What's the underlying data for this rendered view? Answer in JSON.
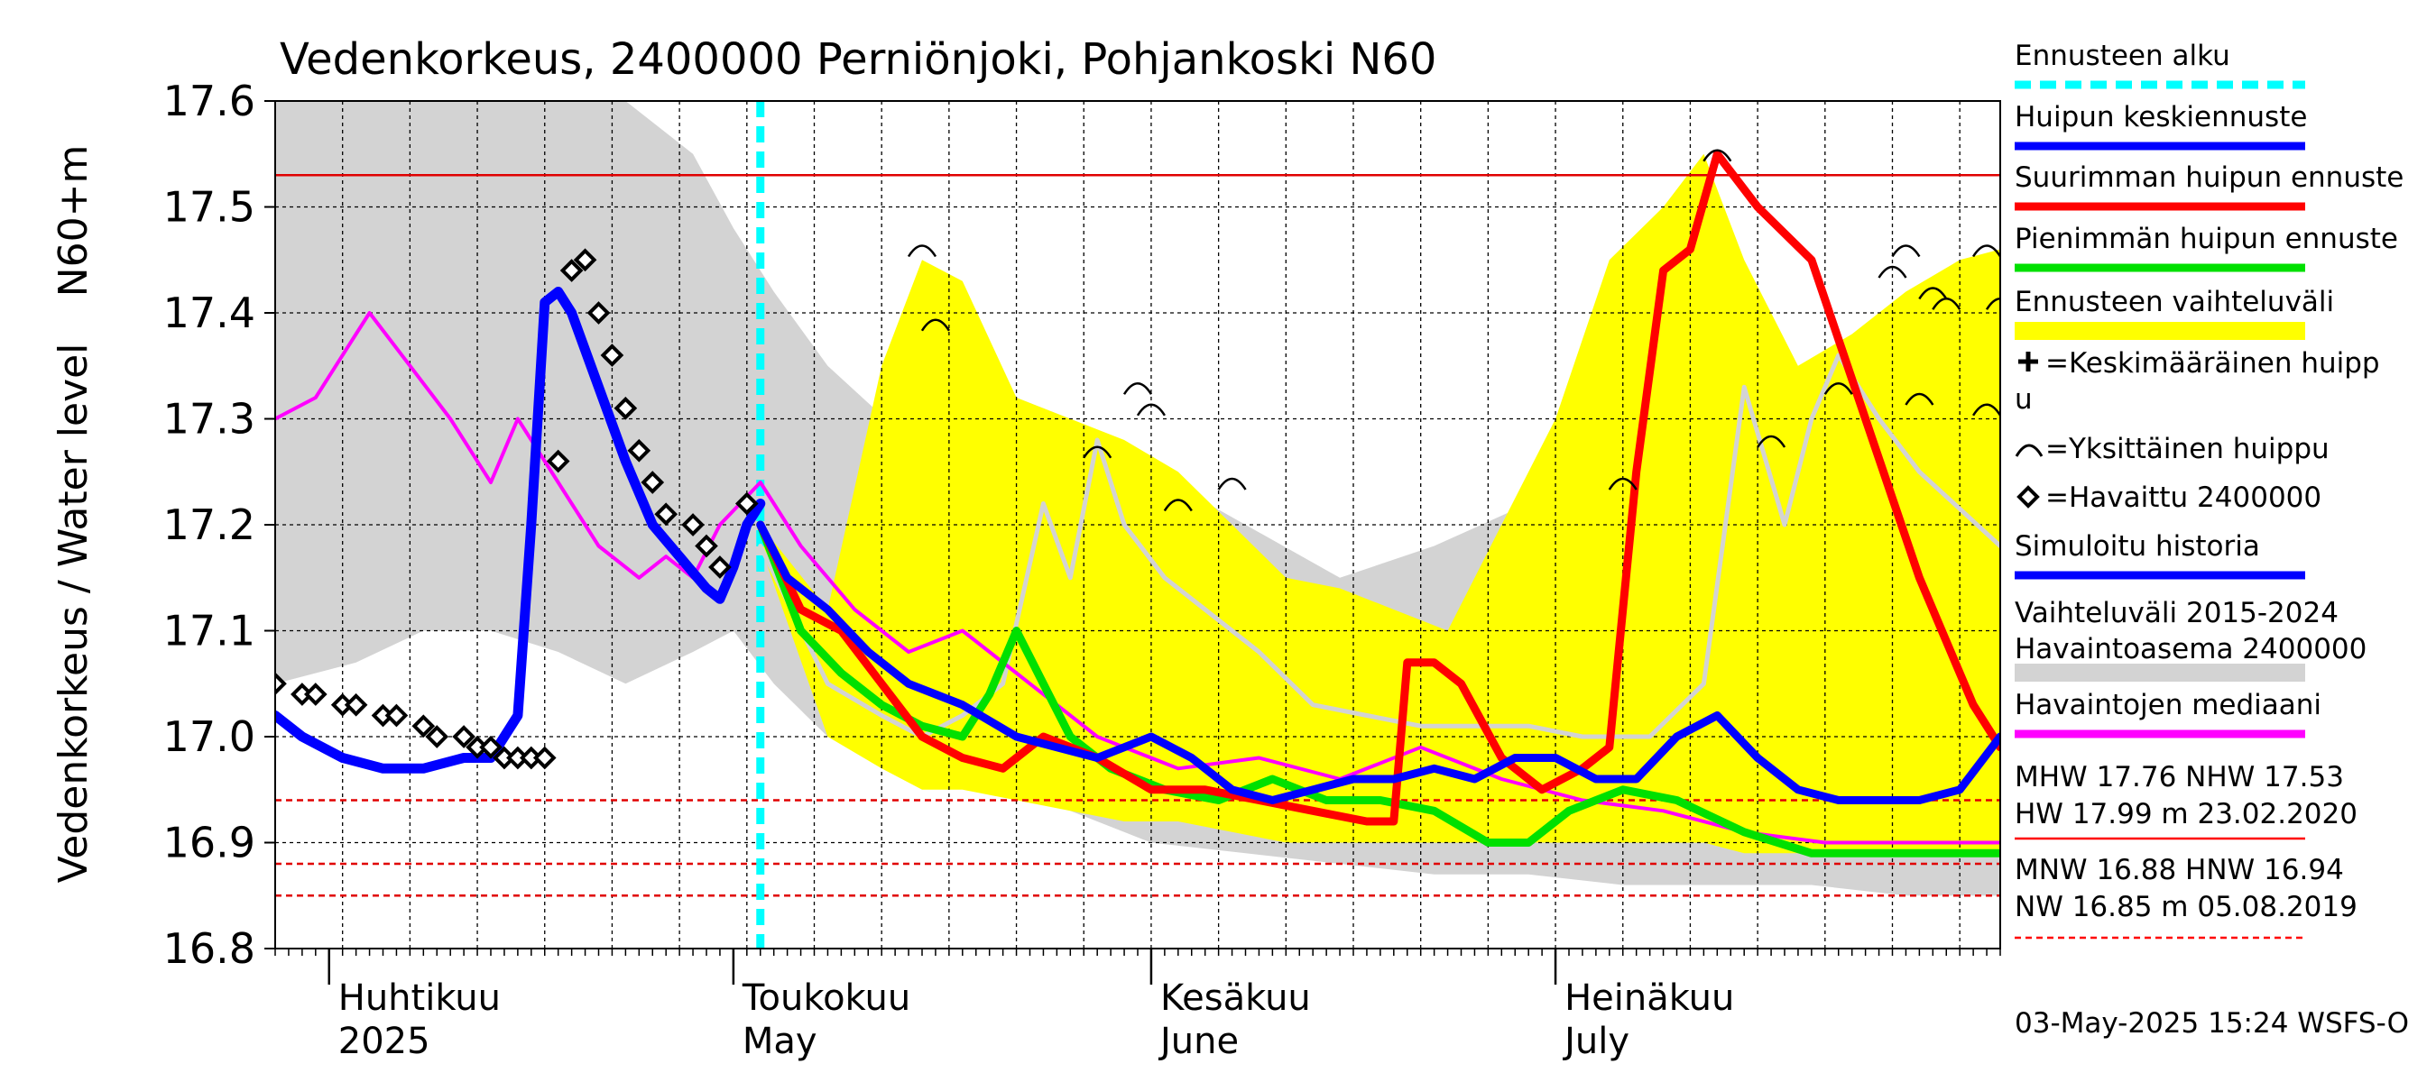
{
  "chart_data": {
    "type": "line",
    "title": "Vedenkorkeus, 2400000 Perniönjoki, Pohjankoski N60",
    "ylabel": "Vedenkorkeus / Water level",
    "yunit": "N60+m",
    "ylim": [
      16.8,
      17.6
    ],
    "yticks": [
      16.8,
      16.9,
      17.0,
      17.1,
      17.2,
      17.3,
      17.4,
      17.5,
      17.6
    ],
    "x_range": [
      "2025-03-28",
      "2025-08-03"
    ],
    "grid": true,
    "forecast_start": "2025-05-03",
    "month_labels": [
      {
        "date": "2025-04-01",
        "fi": "Huhtikuu",
        "en": "2025"
      },
      {
        "date": "2025-05-01",
        "fi": "Toukokuu",
        "en": "May"
      },
      {
        "date": "2025-06-01",
        "fi": "Kesäkuu",
        "en": "June"
      },
      {
        "date": "2025-07-01",
        "fi": "Heinäkuu",
        "en": "July"
      }
    ],
    "reference_lines": [
      {
        "name": "NHW",
        "value": 17.53,
        "color": "#e00000",
        "style": "solid"
      },
      {
        "name": "HNW",
        "value": 16.94,
        "color": "#e00000",
        "style": "dashed"
      },
      {
        "name": "MNW",
        "value": 16.88,
        "color": "#e00000",
        "style": "dashed"
      },
      {
        "name": "NW",
        "value": 16.85,
        "color": "#e00000",
        "style": "dashed"
      }
    ],
    "history_band": {
      "color": "#d3d3d3",
      "dates": [
        "2025-03-28",
        "2025-04-03",
        "2025-04-08",
        "2025-04-13",
        "2025-04-18",
        "2025-04-23",
        "2025-04-28",
        "2025-05-01",
        "2025-05-04",
        "2025-05-08",
        "2025-05-14",
        "2025-05-20",
        "2025-05-26",
        "2025-06-01",
        "2025-06-08",
        "2025-06-15",
        "2025-06-22",
        "2025-06-29",
        "2025-07-06",
        "2025-07-13",
        "2025-07-20",
        "2025-07-27",
        "2025-08-03"
      ],
      "upper": [
        17.6,
        17.6,
        17.6,
        17.6,
        17.6,
        17.6,
        17.55,
        17.48,
        17.42,
        17.35,
        17.28,
        17.33,
        17.3,
        17.25,
        17.2,
        17.15,
        17.18,
        17.22,
        17.3,
        17.32,
        17.34,
        17.3,
        17.28
      ],
      "lower": [
        17.05,
        17.07,
        17.1,
        17.1,
        17.08,
        17.05,
        17.08,
        17.1,
        17.05,
        17.0,
        16.97,
        16.95,
        16.93,
        16.9,
        16.89,
        16.88,
        16.87,
        16.87,
        16.86,
        16.86,
        16.86,
        16.85,
        16.85
      ]
    },
    "forecast_band": {
      "color": "#ffff00",
      "dates": [
        "2025-05-03",
        "2025-05-08",
        "2025-05-12",
        "2025-05-15",
        "2025-05-18",
        "2025-05-22",
        "2025-05-26",
        "2025-05-30",
        "2025-06-03",
        "2025-06-07",
        "2025-06-11",
        "2025-06-15",
        "2025-06-19",
        "2025-06-23",
        "2025-06-27",
        "2025-07-01",
        "2025-07-05",
        "2025-07-09",
        "2025-07-12",
        "2025-07-15",
        "2025-07-19",
        "2025-07-23",
        "2025-07-27",
        "2025-07-31",
        "2025-08-03"
      ],
      "upper": [
        17.2,
        17.12,
        17.35,
        17.45,
        17.43,
        17.32,
        17.3,
        17.28,
        17.25,
        17.2,
        17.15,
        17.14,
        17.12,
        17.1,
        17.2,
        17.3,
        17.45,
        17.5,
        17.55,
        17.45,
        17.35,
        17.38,
        17.42,
        17.45,
        17.46
      ],
      "lower": [
        17.18,
        17.0,
        16.97,
        16.95,
        16.95,
        16.94,
        16.93,
        16.92,
        16.92,
        16.91,
        16.9,
        16.9,
        16.9,
        16.9,
        16.9,
        16.9,
        16.9,
        16.9,
        16.9,
        16.89,
        16.89,
        16.89,
        16.89,
        16.89,
        16.89
      ]
    },
    "series": [
      {
        "name": "Simuloitu historia",
        "color": "#0000ff",
        "width": 11,
        "x": [
          "2025-03-28",
          "2025-03-30",
          "2025-04-02",
          "2025-04-05",
          "2025-04-08",
          "2025-04-11",
          "2025-04-13",
          "2025-04-15",
          "2025-04-16",
          "2025-04-17",
          "2025-04-18",
          "2025-04-19",
          "2025-04-21",
          "2025-04-23",
          "2025-04-25",
          "2025-04-27",
          "2025-04-29",
          "2025-04-30",
          "2025-05-01",
          "2025-05-02",
          "2025-05-03"
        ],
        "y": [
          17.02,
          17.0,
          16.98,
          16.97,
          16.97,
          16.98,
          16.98,
          17.02,
          17.2,
          17.41,
          17.42,
          17.4,
          17.33,
          17.26,
          17.2,
          17.17,
          17.14,
          17.13,
          17.16,
          17.2,
          17.22
        ]
      },
      {
        "name": "Huipun keskiennuste",
        "color": "#0000ff",
        "width": 9,
        "x": [
          "2025-05-03",
          "2025-05-05",
          "2025-05-08",
          "2025-05-11",
          "2025-05-14",
          "2025-05-18",
          "2025-05-22",
          "2025-05-25",
          "2025-05-28",
          "2025-06-01",
          "2025-06-04",
          "2025-06-07",
          "2025-06-10",
          "2025-06-13",
          "2025-06-16",
          "2025-06-19",
          "2025-06-22",
          "2025-06-25",
          "2025-06-28",
          "2025-07-01",
          "2025-07-04",
          "2025-07-07",
          "2025-07-10",
          "2025-07-13",
          "2025-07-16",
          "2025-07-19",
          "2025-07-22",
          "2025-07-25",
          "2025-07-28",
          "2025-07-31",
          "2025-08-03"
        ],
        "y": [
          17.2,
          17.15,
          17.12,
          17.08,
          17.05,
          17.03,
          17.0,
          16.99,
          16.98,
          17.0,
          16.98,
          16.95,
          16.94,
          16.95,
          16.96,
          16.96,
          16.97,
          16.96,
          16.98,
          16.98,
          16.96,
          16.96,
          17.0,
          17.02,
          16.98,
          16.95,
          16.94,
          16.94,
          16.94,
          16.95,
          17.0
        ]
      },
      {
        "name": "Suurimman huipun ennuste",
        "color": "#ff0000",
        "width": 9,
        "x": [
          "2025-05-03",
          "2025-05-06",
          "2025-05-09",
          "2025-05-12",
          "2025-05-15",
          "2025-05-18",
          "2025-05-21",
          "2025-05-24",
          "2025-05-28",
          "2025-06-01",
          "2025-06-05",
          "2025-06-09",
          "2025-06-13",
          "2025-06-17",
          "2025-06-19",
          "2025-06-20",
          "2025-06-22",
          "2025-06-24",
          "2025-06-27",
          "2025-06-30",
          "2025-07-03",
          "2025-07-05",
          "2025-07-07",
          "2025-07-09",
          "2025-07-11",
          "2025-07-13",
          "2025-07-16",
          "2025-07-20",
          "2025-07-24",
          "2025-07-28",
          "2025-08-01",
          "2025-08-03"
        ],
        "y": [
          17.2,
          17.12,
          17.1,
          17.05,
          17.0,
          16.98,
          16.97,
          17.0,
          16.98,
          16.95,
          16.95,
          16.94,
          16.93,
          16.92,
          16.92,
          17.07,
          17.07,
          17.05,
          16.98,
          16.95,
          16.97,
          16.99,
          17.25,
          17.44,
          17.46,
          17.55,
          17.5,
          17.45,
          17.3,
          17.15,
          17.03,
          16.99
        ]
      },
      {
        "name": "Pienimmän huipun ennuste",
        "color": "#00e000",
        "width": 9,
        "x": [
          "2025-05-03",
          "2025-05-06",
          "2025-05-09",
          "2025-05-12",
          "2025-05-15",
          "2025-05-18",
          "2025-05-20",
          "2025-05-22",
          "2025-05-24",
          "2025-05-26",
          "2025-05-29",
          "2025-06-02",
          "2025-06-06",
          "2025-06-10",
          "2025-06-14",
          "2025-06-18",
          "2025-06-22",
          "2025-06-26",
          "2025-06-29",
          "2025-07-02",
          "2025-07-06",
          "2025-07-10",
          "2025-07-15",
          "2025-07-20",
          "2025-07-25",
          "2025-07-30",
          "2025-08-03"
        ],
        "y": [
          17.2,
          17.1,
          17.06,
          17.03,
          17.01,
          17.0,
          17.04,
          17.1,
          17.05,
          17.0,
          16.97,
          16.95,
          16.94,
          16.96,
          16.94,
          16.94,
          16.93,
          16.9,
          16.9,
          16.93,
          16.95,
          16.94,
          16.91,
          16.89,
          16.89,
          16.89,
          16.89
        ]
      },
      {
        "name": "Havaintojen mediaani",
        "color": "#ff00ff",
        "width": 4,
        "x": [
          "2025-03-28",
          "2025-03-31",
          "2025-04-03",
          "2025-04-04",
          "2025-04-07",
          "2025-04-10",
          "2025-04-13",
          "2025-04-15",
          "2025-04-18",
          "2025-04-21",
          "2025-04-24",
          "2025-04-26",
          "2025-04-28",
          "2025-04-30",
          "2025-05-03",
          "2025-05-06",
          "2025-05-10",
          "2025-05-14",
          "2025-05-18",
          "2025-05-22",
          "2025-05-28",
          "2025-06-03",
          "2025-06-09",
          "2025-06-15",
          "2025-06-21",
          "2025-06-27",
          "2025-07-03",
          "2025-07-09",
          "2025-07-15",
          "2025-07-21",
          "2025-07-27",
          "2025-08-03"
        ],
        "y": [
          17.3,
          17.32,
          17.38,
          17.4,
          17.35,
          17.3,
          17.24,
          17.3,
          17.24,
          17.18,
          17.15,
          17.17,
          17.15,
          17.2,
          17.24,
          17.18,
          17.12,
          17.08,
          17.1,
          17.06,
          17.0,
          16.97,
          16.98,
          16.96,
          16.99,
          16.96,
          16.94,
          16.93,
          16.91,
          16.9,
          16.9,
          16.9
        ]
      },
      {
        "name": "Vaihteluväli 2015-2024 Havaintoasema 2400000 (keskiarvo)",
        "color": "#d3d3d3",
        "width": 5,
        "x": [
          "2025-05-03",
          "2025-05-08",
          "2025-05-12",
          "2025-05-15",
          "2025-05-18",
          "2025-05-21",
          "2025-05-24",
          "2025-05-26",
          "2025-05-28",
          "2025-05-30",
          "2025-06-02",
          "2025-06-05",
          "2025-06-09",
          "2025-06-13",
          "2025-06-17",
          "2025-06-21",
          "2025-06-25",
          "2025-06-29",
          "2025-07-03",
          "2025-07-08",
          "2025-07-12",
          "2025-07-15",
          "2025-07-18",
          "2025-07-20",
          "2025-07-22",
          "2025-07-25",
          "2025-07-28",
          "2025-08-03"
        ],
        "y": [
          17.18,
          17.05,
          17.02,
          17.0,
          17.02,
          17.05,
          17.22,
          17.15,
          17.28,
          17.2,
          17.15,
          17.12,
          17.08,
          17.03,
          17.02,
          17.01,
          17.01,
          17.01,
          17.0,
          17.0,
          17.05,
          17.33,
          17.2,
          17.3,
          17.36,
          17.3,
          17.25,
          17.18
        ]
      }
    ],
    "observed": {
      "name": "Havaittu 2400000",
      "x": [
        "2025-03-28",
        "2025-03-30",
        "2025-03-31",
        "2025-04-02",
        "2025-04-03",
        "2025-04-05",
        "2025-04-06",
        "2025-04-08",
        "2025-04-09",
        "2025-04-11",
        "2025-04-12",
        "2025-04-13",
        "2025-04-14",
        "2025-04-15",
        "2025-04-16",
        "2025-04-17",
        "2025-04-18",
        "2025-04-19",
        "2025-04-20",
        "2025-04-21",
        "2025-04-22",
        "2025-04-23",
        "2025-04-24",
        "2025-04-25",
        "2025-04-26",
        "2025-04-28",
        "2025-04-29",
        "2025-04-30",
        "2025-05-02"
      ],
      "y": [
        17.05,
        17.04,
        17.04,
        17.03,
        17.03,
        17.02,
        17.02,
        17.01,
        17.0,
        17.0,
        16.99,
        16.99,
        16.98,
        16.98,
        16.98,
        16.98,
        17.26,
        17.44,
        17.45,
        17.4,
        17.36,
        17.31,
        17.27,
        17.24,
        17.21,
        17.2,
        17.18,
        17.16,
        17.22
      ]
    },
    "peak_markers": [
      {
        "date": "2025-05-15",
        "y": 17.46
      },
      {
        "date": "2025-05-16",
        "y": 17.39
      },
      {
        "date": "2025-05-28",
        "y": 17.27
      },
      {
        "date": "2025-05-31",
        "y": 17.33
      },
      {
        "date": "2025-06-01",
        "y": 17.31
      },
      {
        "date": "2025-06-03",
        "y": 17.22
      },
      {
        "date": "2025-06-07",
        "y": 17.24
      },
      {
        "date": "2025-07-06",
        "y": 17.24
      },
      {
        "date": "2025-07-13",
        "y": 17.55
      },
      {
        "date": "2025-07-17",
        "y": 17.28
      },
      {
        "date": "2025-07-22",
        "y": 17.33
      },
      {
        "date": "2025-07-26",
        "y": 17.44
      },
      {
        "date": "2025-07-27",
        "y": 17.46
      },
      {
        "date": "2025-07-28",
        "y": 17.32
      },
      {
        "date": "2025-07-29",
        "y": 17.42
      },
      {
        "date": "2025-07-30",
        "y": 17.41
      },
      {
        "date": "2025-08-02",
        "y": 17.31
      },
      {
        "date": "2025-08-02",
        "y": 17.46
      },
      {
        "date": "2025-08-03",
        "y": 17.41
      }
    ]
  },
  "legend": {
    "items": [
      {
        "label": "Ennusteen alku",
        "color": "#00ffff",
        "style": "dashed"
      },
      {
        "label": "Huipun keskiennuste",
        "color": "#0000ff",
        "style": "solid"
      },
      {
        "label": "Suurimman huipun ennuste",
        "color": "#ff0000",
        "style": "solid"
      },
      {
        "label": "Pienimmän huipun ennuste",
        "color": "#00e000",
        "style": "solid"
      },
      {
        "label": "Ennusteen vaihteluväli",
        "color": "#ffff00",
        "style": "band"
      },
      {
        "label": "=Keskimääräinen huipp",
        "label2": "u",
        "symbol": "plus"
      },
      {
        "label": "=Yksittäinen huippu",
        "symbol": "arc"
      },
      {
        "label": "=Havaittu 2400000",
        "symbol": "diamond"
      },
      {
        "label": "Simuloitu historia",
        "color": "#0000ff",
        "style": "solid"
      },
      {
        "label": "Vaihteluväli 2015-2024",
        "label2": " Havaintoasema 2400000",
        "color": "#d3d3d3",
        "style": "band"
      },
      {
        "label": "Havaintojen mediaani",
        "color": "#ff00ff",
        "style": "solid"
      }
    ],
    "stats": {
      "line1": "MHW  17.76 NHW  17.53",
      "line2": "HW  17.99 m 23.02.2020",
      "line3": "MNW  16.88 HNW  16.94",
      "line4": "NW  16.85 m 05.08.2019"
    }
  },
  "footer": "03-May-2025 15:24 WSFS-O"
}
